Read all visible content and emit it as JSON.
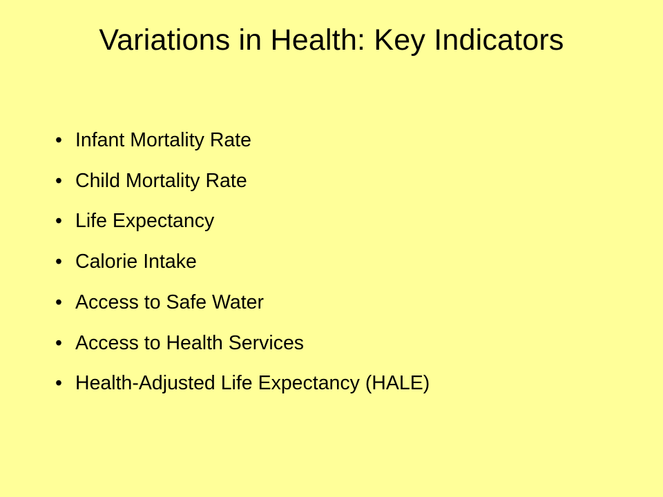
{
  "slide": {
    "title": "Variations in Health: Key Indicators",
    "bullets": [
      "Infant Mortality Rate",
      "Child Mortality Rate",
      "Life Expectancy",
      "Calorie Intake",
      "Access to Safe Water",
      "Access to Health Services",
      "Health-Adjusted Life Expectancy (HALE)"
    ],
    "background_color": "#FFFF99"
  }
}
